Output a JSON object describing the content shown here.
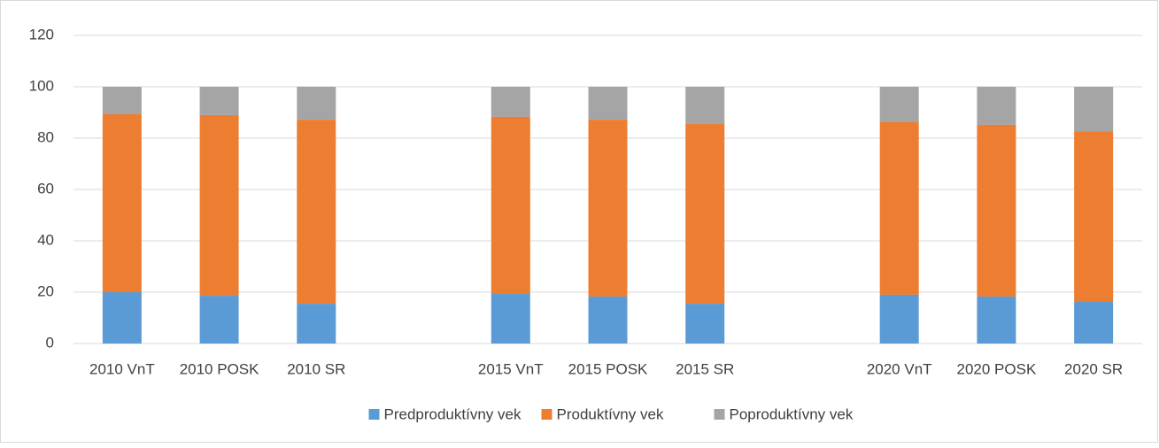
{
  "chart_data": {
    "type": "stacked-bar",
    "categories": [
      "2010 VnT",
      "2010 POSK",
      "2010 SR",
      null,
      "2015 VnT",
      "2015 POSK",
      "2015 SR",
      null,
      "2020 VnT",
      "2020 POSK",
      "2020 SR"
    ],
    "series": [
      {
        "name": "Predproduktívny vek",
        "color": "#5b9bd5",
        "values": [
          20.0,
          18.6,
          15.5,
          null,
          19.3,
          18.3,
          15.5,
          null,
          19.0,
          18.3,
          16.2
        ]
      },
      {
        "name": "Produktívny vek",
        "color": "#ed7d31",
        "values": [
          69.3,
          70.4,
          71.7,
          null,
          69.0,
          68.9,
          70.0,
          null,
          67.2,
          66.9,
          66.4
        ]
      },
      {
        "name": "Poproduktívny vek",
        "color": "#a5a5a5",
        "values": [
          10.7,
          11.0,
          12.8,
          null,
          11.7,
          12.8,
          14.5,
          null,
          13.8,
          14.8,
          17.4
        ]
      }
    ],
    "ylim": [
      0,
      120
    ],
    "yticks": [
      0,
      20,
      40,
      60,
      80,
      100,
      120
    ],
    "grid": true,
    "legend": "bottom"
  }
}
